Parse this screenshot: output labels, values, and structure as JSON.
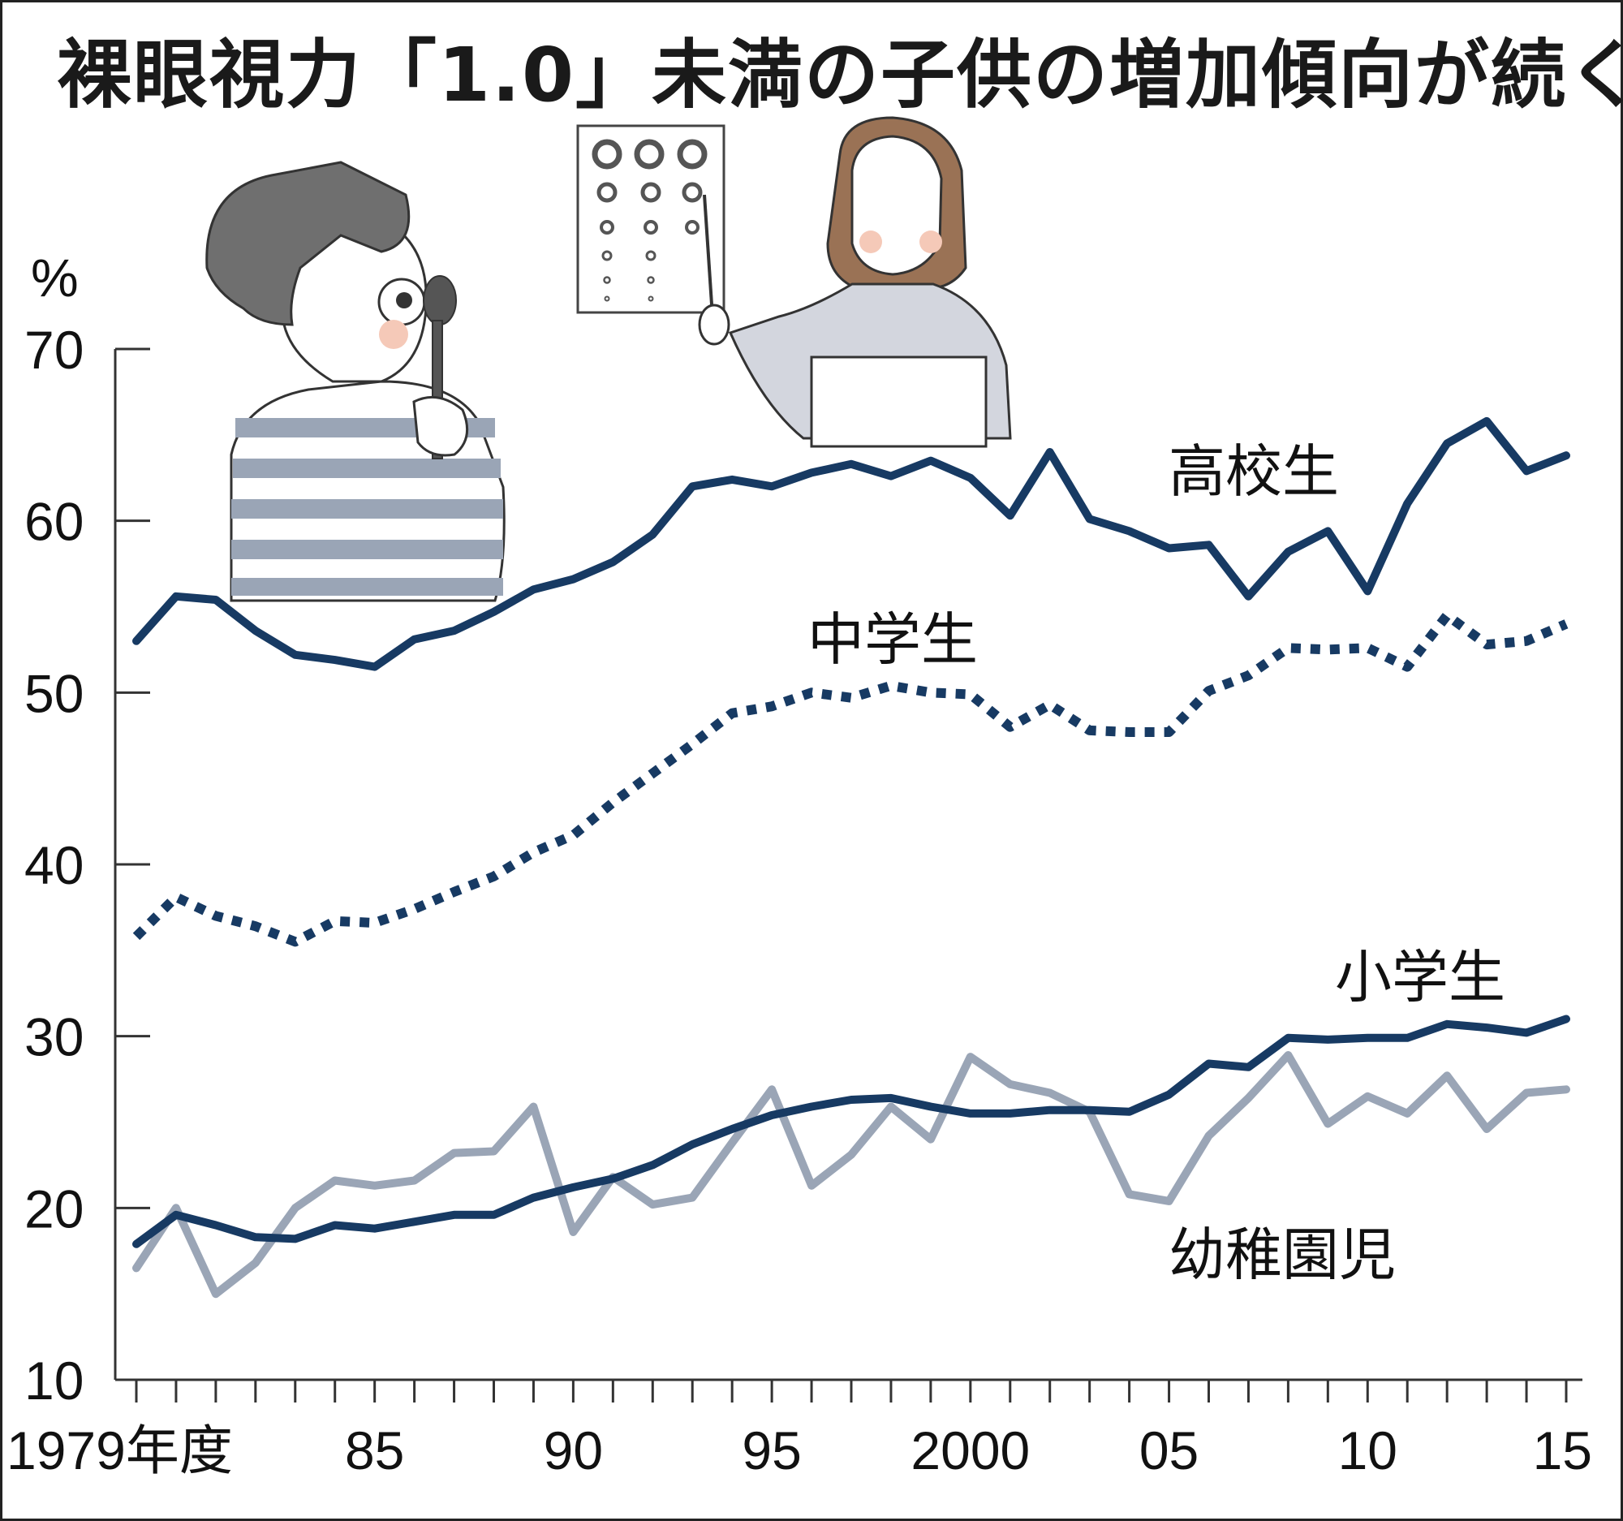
{
  "title": "裸眼視力「1.0」未満の子供の増加傾向が続く",
  "chart_data": {
    "type": "line",
    "y_unit": "%",
    "ylim": [
      10,
      70
    ],
    "y_ticks": [
      "70",
      "60",
      "50",
      "40",
      "30",
      "20",
      "10"
    ],
    "x_tick_labels": [
      {
        "year": 1979,
        "label": "1979年度"
      },
      {
        "year": 1985,
        "label": "85"
      },
      {
        "year": 1990,
        "label": "90"
      },
      {
        "year": 1995,
        "label": "95"
      },
      {
        "year": 2000,
        "label": "2000"
      },
      {
        "year": 2005,
        "label": "05"
      },
      {
        "year": 2010,
        "label": "10"
      },
      {
        "year": 2015,
        "label": "15"
      }
    ],
    "x": [
      1979,
      1980,
      1981,
      1982,
      1983,
      1984,
      1985,
      1986,
      1987,
      1988,
      1989,
      1990,
      1991,
      1992,
      1993,
      1994,
      1995,
      1996,
      1997,
      1998,
      1999,
      2000,
      2001,
      2002,
      2003,
      2004,
      2005,
      2006,
      2007,
      2008,
      2009,
      2010,
      2011,
      2012,
      2013,
      2014,
      2015
    ],
    "series": [
      {
        "name": "高校生",
        "style": "solid",
        "color": "#173a63",
        "values": [
          53.0,
          55.6,
          55.4,
          53.6,
          52.2,
          51.9,
          51.5,
          53.1,
          53.6,
          54.7,
          56.0,
          56.6,
          57.6,
          59.2,
          62.0,
          62.4,
          62.0,
          62.8,
          63.3,
          62.6,
          63.5,
          62.5,
          60.3,
          64.0,
          60.1,
          59.4,
          58.4,
          58.6,
          55.6,
          58.2,
          59.4,
          55.9,
          61.0,
          64.5,
          65.8,
          62.9,
          63.8
        ]
      },
      {
        "name": "中学生",
        "style": "dotted",
        "color": "#173a63",
        "values": [
          35.8,
          38.1,
          37.0,
          36.4,
          35.5,
          36.7,
          36.6,
          37.4,
          38.4,
          39.3,
          40.7,
          41.7,
          43.6,
          45.3,
          47.0,
          48.8,
          49.2,
          50.0,
          49.7,
          50.4,
          50.0,
          49.9,
          48.0,
          49.3,
          47.8,
          47.7,
          47.7,
          50.1,
          51.0,
          52.6,
          52.5,
          52.6,
          51.5,
          54.5,
          52.8,
          53.0,
          54.0
        ]
      },
      {
        "name": "小学生",
        "style": "solid",
        "color": "#173a63",
        "values": [
          17.9,
          19.6,
          19.0,
          18.3,
          18.2,
          19.0,
          18.8,
          19.2,
          19.6,
          19.6,
          20.6,
          21.2,
          21.7,
          22.5,
          23.7,
          24.6,
          25.4,
          25.9,
          26.3,
          26.4,
          25.9,
          25.5,
          25.5,
          25.7,
          25.7,
          25.6,
          26.6,
          28.4,
          28.2,
          29.9,
          29.8,
          29.9,
          29.9,
          30.7,
          30.5,
          30.2,
          31.0
        ]
      },
      {
        "name": "幼稚園児",
        "style": "solid",
        "color": "#9aa5b6",
        "values": [
          16.5,
          20.0,
          15.0,
          16.8,
          20.0,
          21.6,
          21.3,
          21.6,
          23.2,
          23.3,
          25.9,
          18.6,
          21.8,
          20.2,
          20.6,
          23.8,
          26.9,
          21.3,
          23.1,
          25.9,
          24.0,
          28.8,
          27.2,
          26.7,
          25.6,
          20.8,
          20.4,
          24.2,
          26.4,
          28.9,
          24.9,
          26.5,
          25.5,
          27.7,
          24.6,
          26.7,
          26.9
        ]
      }
    ],
    "series_labels": [
      "高校生",
      "中学生",
      "小学生",
      "幼稚園児"
    ]
  }
}
